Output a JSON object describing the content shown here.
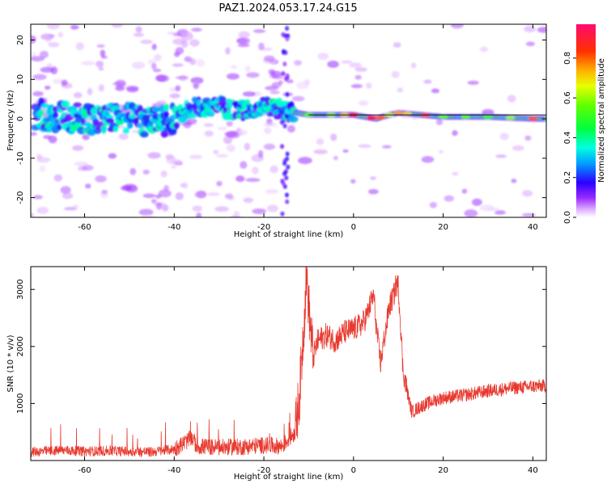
{
  "title": "PAZ1.2024.053.17.24.G15",
  "chart_data": [
    {
      "type": "heatmap",
      "xlabel": "Height of straight line (km)",
      "ylabel": "Frequency (Hz)",
      "xlim": [
        -72,
        43
      ],
      "ylim": [
        -25,
        24
      ],
      "xticks": [
        -60,
        -40,
        -20,
        0,
        20,
        40
      ],
      "yticks": [
        -20,
        -10,
        0,
        10,
        20
      ],
      "colorbar": {
        "label": "Normalized spectral amplitude",
        "range": [
          0.0,
          0.97
        ],
        "ticks": [
          0.0,
          0.2,
          0.4,
          0.6,
          0.8
        ],
        "colormap": "gist_rainbow_r (white at 0)"
      },
      "ridge_center_hz": [
        [
          -70,
          1
        ],
        [
          -60,
          0
        ],
        [
          -50,
          0
        ],
        [
          -45,
          -1
        ],
        [
          -40,
          0
        ],
        [
          -35,
          3
        ],
        [
          -30,
          3
        ],
        [
          -25,
          2
        ],
        [
          -20,
          3
        ],
        [
          -15,
          2
        ],
        [
          -10,
          1
        ],
        [
          -5,
          1
        ],
        [
          0,
          1
        ],
        [
          5,
          0
        ],
        [
          8,
          1
        ],
        [
          10,
          1.5
        ],
        [
          15,
          1
        ],
        [
          20,
          0.5
        ],
        [
          30,
          0.5
        ],
        [
          40,
          0
        ]
      ]
    },
    {
      "type": "line",
      "xlabel": "Height of straight line (km)",
      "ylabel": "SNR (10 * v/v)",
      "xlim": [
        -72,
        43
      ],
      "ylim": [
        0,
        3400
      ],
      "xticks": [
        -60,
        -40,
        -20,
        0,
        20,
        40
      ],
      "yticks": [
        1000,
        2000,
        3000
      ],
      "color": "#e8392f",
      "series": [
        {
          "x": [
            -72,
            -65,
            -60,
            -55,
            -50,
            -45,
            -40,
            -36,
            -35,
            -30,
            -25,
            -20,
            -16,
            -13,
            -12,
            -11,
            -10.5,
            -10,
            -9,
            -8,
            -6,
            -4,
            -2,
            0,
            2,
            3,
            4,
            4.5,
            5,
            6,
            7,
            8,
            9,
            9.5,
            10,
            10.5,
            11,
            12,
            13,
            15,
            18,
            20,
            25,
            30,
            35,
            40,
            43
          ],
          "y": [
            150,
            180,
            160,
            170,
            160,
            150,
            200,
            400,
            250,
            230,
            240,
            270,
            250,
            500,
            1200,
            2500,
            3300,
            2700,
            1800,
            2100,
            2200,
            2100,
            2250,
            2300,
            2400,
            2550,
            2800,
            2900,
            2400,
            1700,
            2200,
            2700,
            2900,
            3100,
            3050,
            2400,
            1600,
            1200,
            850,
            950,
            1050,
            1100,
            1150,
            1220,
            1270,
            1300,
            1310
          ]
        }
      ]
    }
  ]
}
